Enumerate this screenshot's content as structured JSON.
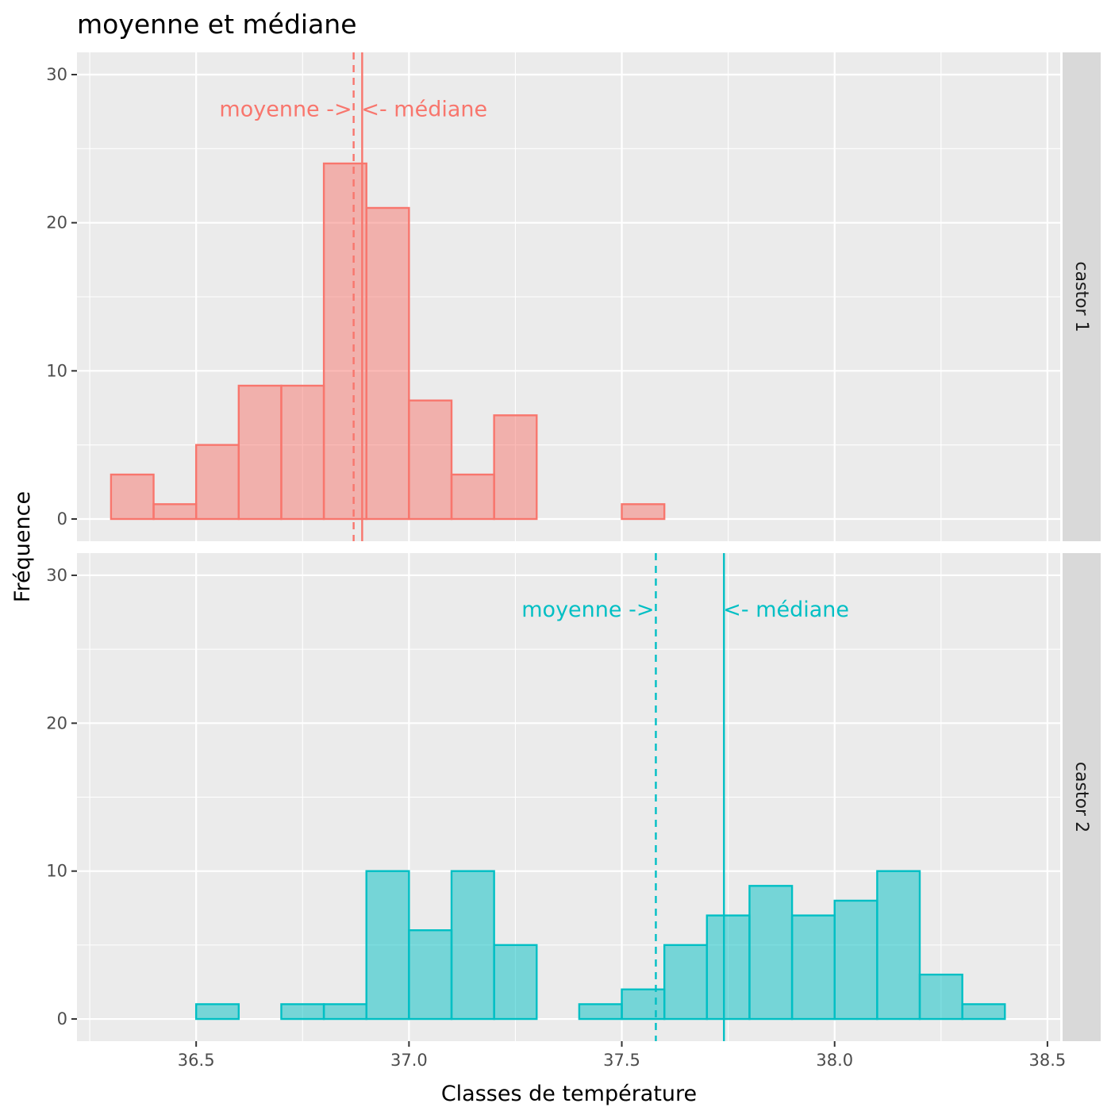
{
  "chart_data": {
    "type": "bar",
    "subtype": "histogram",
    "title": "moyenne et médiane",
    "xlabel": "Classes de température",
    "ylabel": "Fréquence",
    "xlim": [
      36.22,
      38.53
    ],
    "x_ticks": [
      36.5,
      37.0,
      37.5,
      38.0,
      38.5
    ],
    "x_tick_labels": [
      "36.5",
      "37.0",
      "37.5",
      "38.0",
      "38.5"
    ],
    "ylim": [
      -1.5,
      31.5
    ],
    "y_ticks": [
      0,
      10,
      20,
      30
    ],
    "y_tick_labels": [
      "0",
      "10",
      "20",
      "30"
    ],
    "bin_width": 0.1,
    "bin_starts": [
      36.3,
      36.4,
      36.5,
      36.6,
      36.7,
      36.8,
      36.9,
      37.0,
      37.1,
      37.2,
      37.3,
      37.4,
      37.5,
      37.6,
      37.7,
      37.8,
      37.9,
      38.0,
      38.1,
      38.2,
      38.3
    ],
    "grid": true,
    "facets": [
      {
        "label": "castor 1",
        "color": "#F8766D",
        "fill": "#F8766D",
        "values": [
          3,
          1,
          5,
          9,
          9,
          24,
          21,
          8,
          3,
          7,
          0,
          0,
          1,
          0,
          0,
          0,
          0,
          0,
          0,
          0,
          0
        ],
        "mean": 36.87,
        "median": 36.89,
        "mean_label": "moyenne ->",
        "median_label": "<- médiane"
      },
      {
        "label": "castor 2",
        "color": "#00BFC4",
        "fill": "#00BFC4",
        "values": [
          0,
          0,
          1,
          0,
          1,
          1,
          10,
          6,
          10,
          5,
          0,
          1,
          2,
          5,
          7,
          9,
          7,
          8,
          10,
          3,
          1
        ],
        "mean": 37.58,
        "median": 37.74,
        "mean_label": "moyenne ->",
        "median_label": "<- médiane"
      }
    ]
  }
}
